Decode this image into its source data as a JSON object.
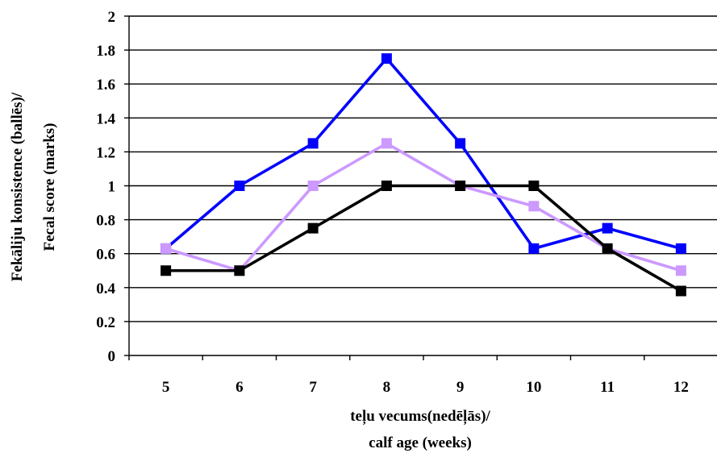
{
  "chart_data": {
    "type": "line",
    "x": [
      "5",
      "6",
      "7",
      "8",
      "9",
      "10",
      "11",
      "12"
    ],
    "y_ticks": [
      "0",
      "0.2",
      "0.4",
      "0.6",
      "0.8",
      "1",
      "1.2",
      "1.4",
      "1.6",
      "1.8",
      "2"
    ],
    "ylim": [
      0,
      2
    ],
    "grid": "horizontal",
    "legend": "none",
    "xlabel_line1": "teļu vecums(nedēļās)/",
    "xlabel_line2": "calf age (weeks)",
    "ylabel_line1": "Fekāliju konsistence (ballēs)/",
    "ylabel_line2": "Fecal score (marks)",
    "series": [
      {
        "color": "#0000ff",
        "values": [
          0.63,
          1.0,
          1.25,
          1.75,
          1.25,
          0.63,
          0.75,
          0.63
        ]
      },
      {
        "color": "#cc99ff",
        "values": [
          0.63,
          0.5,
          1.0,
          1.25,
          1.0,
          0.88,
          0.63,
          0.5
        ]
      },
      {
        "color": "#000000",
        "values": [
          0.5,
          0.5,
          0.75,
          1.0,
          1.0,
          1.0,
          0.63,
          0.38
        ]
      }
    ]
  }
}
